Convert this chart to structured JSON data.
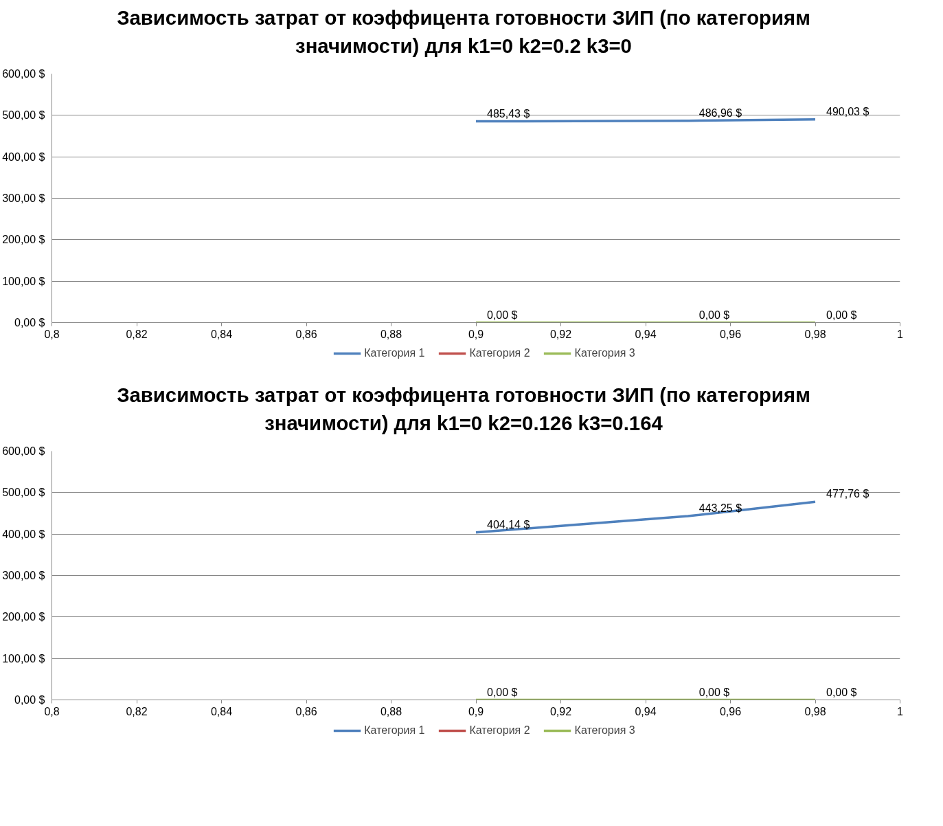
{
  "chart_data": [
    {
      "type": "line",
      "title": "Зависимость затрат от коэффицента готовности ЗИП (по категориям значимости) для k1=0 k2=0.2 k3=0",
      "x": [
        0.9,
        0.95,
        0.98
      ],
      "series": [
        {
          "name": "Категория 1",
          "color": "#4f81bd",
          "values": [
            485.43,
            486.96,
            490.03
          ],
          "value_labels": [
            "485,43 $",
            "486,96 $",
            "490,03 $"
          ]
        },
        {
          "name": "Категория 2",
          "color": "#c0504d",
          "values": [
            null,
            null,
            null
          ]
        },
        {
          "name": "Категория 3",
          "color": "#9bbb59",
          "values": [
            0,
            0,
            0
          ],
          "value_labels": [
            "0,00 $",
            "0,00 $",
            "0,00 $"
          ]
        }
      ],
      "xlim": [
        0.8,
        1
      ],
      "xticks": [
        {
          "value": 0.8,
          "label": "0,8"
        },
        {
          "value": 0.82,
          "label": "0,82"
        },
        {
          "value": 0.84,
          "label": "0,84"
        },
        {
          "value": 0.86,
          "label": "0,86"
        },
        {
          "value": 0.88,
          "label": "0,88"
        },
        {
          "value": 0.9,
          "label": "0,9"
        },
        {
          "value": 0.92,
          "label": "0,92"
        },
        {
          "value": 0.94,
          "label": "0,94"
        },
        {
          "value": 0.96,
          "label": "0,96"
        },
        {
          "value": 0.98,
          "label": "0,98"
        },
        {
          "value": 1,
          "label": "1"
        }
      ],
      "ylim": [
        0,
        600
      ],
      "yticks": [
        {
          "value": 0,
          "label": "0,00 $"
        },
        {
          "value": 100,
          "label": "100,00 $"
        },
        {
          "value": 200,
          "label": "200,00 $"
        },
        {
          "value": 300,
          "label": "300,00 $"
        },
        {
          "value": 400,
          "label": "400,00 $"
        },
        {
          "value": 500,
          "label": "500,00 $"
        },
        {
          "value": 600,
          "label": "600,00 $"
        }
      ],
      "grid": "y",
      "legend": "bottom",
      "marker": "none",
      "line_style": "solid"
    },
    {
      "type": "line",
      "title": "Зависимость затрат от коэффицента готовности ЗИП (по категориям значимости) для k1=0 k2=0.126 k3=0.164",
      "x": [
        0.9,
        0.95,
        0.98
      ],
      "series": [
        {
          "name": "Категория 1",
          "color": "#4f81bd",
          "values": [
            404.14,
            443.25,
            477.76
          ],
          "value_labels": [
            "404,14 $",
            "443,25 $",
            "477,76 $"
          ]
        },
        {
          "name": "Категория 2",
          "color": "#c0504d",
          "values": [
            null,
            null,
            null
          ]
        },
        {
          "name": "Категория 3",
          "color": "#9bbb59",
          "values": [
            0,
            0,
            0
          ],
          "value_labels": [
            "0,00 $",
            "0,00 $",
            "0,00 $"
          ]
        }
      ],
      "xlim": [
        0.8,
        1
      ],
      "xticks": [
        {
          "value": 0.8,
          "label": "0,8"
        },
        {
          "value": 0.82,
          "label": "0,82"
        },
        {
          "value": 0.84,
          "label": "0,84"
        },
        {
          "value": 0.86,
          "label": "0,86"
        },
        {
          "value": 0.88,
          "label": "0,88"
        },
        {
          "value": 0.9,
          "label": "0,9"
        },
        {
          "value": 0.92,
          "label": "0,92"
        },
        {
          "value": 0.94,
          "label": "0,94"
        },
        {
          "value": 0.96,
          "label": "0,96"
        },
        {
          "value": 0.98,
          "label": "0,98"
        },
        {
          "value": 1,
          "label": "1"
        }
      ],
      "ylim": [
        0,
        600
      ],
      "yticks": [
        {
          "value": 0,
          "label": "0,00 $"
        },
        {
          "value": 100,
          "label": "100,00 $"
        },
        {
          "value": 200,
          "label": "200,00 $"
        },
        {
          "value": 300,
          "label": "300,00 $"
        },
        {
          "value": 400,
          "label": "400,00 $"
        },
        {
          "value": 500,
          "label": "500,00 $"
        },
        {
          "value": 600,
          "label": "600,00 $"
        }
      ],
      "grid": "y",
      "legend": "bottom",
      "marker": "none",
      "line_style": "solid"
    }
  ]
}
